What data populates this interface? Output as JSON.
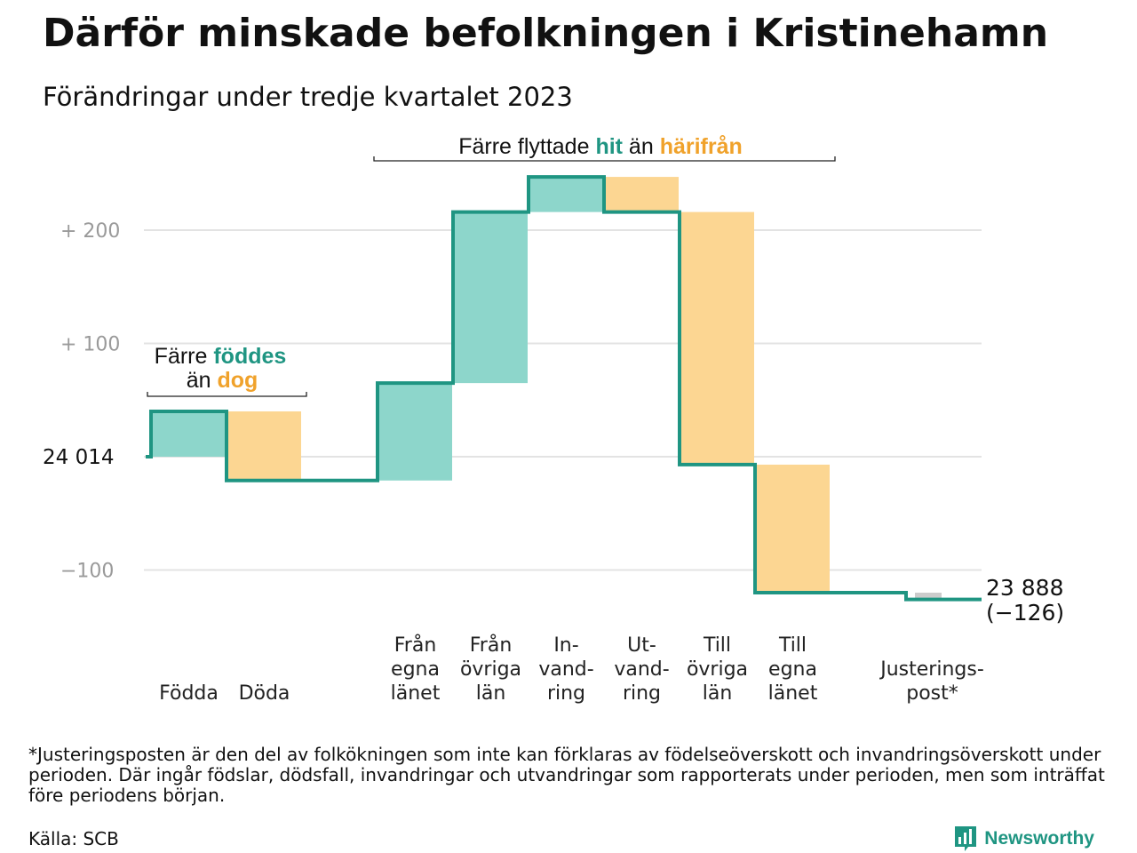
{
  "title": "Därför minskade befolkningen i Kristinehamn",
  "subtitle": "Förändringar under tredje kvartalet 2023",
  "chart_data": {
    "type": "bar",
    "subtype": "waterfall",
    "start_value": 24014,
    "start_label": "24  014",
    "end_value": 23888,
    "end_label": "23 888",
    "end_change_label": "(−126)",
    "y_ticks": [
      {
        "value": 200,
        "label": "+  200"
      },
      {
        "value": 100,
        "label": "+  100"
      },
      {
        "value": -100,
        "label": "−100"
      }
    ],
    "ylim": [
      -135,
      250
    ],
    "grid": true,
    "steps": [
      {
        "category": [
          "Födda"
        ],
        "value": 40
      },
      {
        "category": [
          "Döda"
        ],
        "value": -61
      },
      {
        "category": [],
        "value": 0
      },
      {
        "category": [
          "Från",
          "egna",
          "länet"
        ],
        "value": 86
      },
      {
        "category": [
          "Från",
          "övriga",
          "län"
        ],
        "value": 151
      },
      {
        "category": [
          "In-",
          "vand-",
          "ring"
        ],
        "value": 31
      },
      {
        "category": [
          "Ut-",
          "vand-",
          "ring"
        ],
        "value": -31
      },
      {
        "category": [
          "Till",
          "övriga",
          "län"
        ],
        "value": -223
      },
      {
        "category": [
          "Till",
          "egna",
          "länet"
        ],
        "value": -113
      },
      {
        "category": [],
        "value": 0
      },
      {
        "category": [
          "Justerings-",
          "post*"
        ],
        "value": -6
      }
    ],
    "annotations": {
      "births": {
        "line1_pre": "Färre ",
        "line1_hl": "föddes",
        "line2_pre": "än ",
        "line2_hl": "dog"
      },
      "moves": {
        "pre": "Färre flyttade ",
        "hl1": "hit",
        "mid": " än ",
        "hl2": "härifrån"
      }
    },
    "colors": {
      "increase": "#8dd6cb",
      "decrease": "#fcd692",
      "adjustment": "#cccccc",
      "line": "#1f9582",
      "grid": "#e3e3e3",
      "highlight_green": "#1f9582",
      "highlight_orange": "#f0a22b"
    }
  },
  "footnote": "*Justeringsposten är den del av folkökningen som inte kan förklaras av födelseöverskott och invandringsöverskott under perioden. Där ingår födslar, dödsfall, invandringar och utvandringar som rapporterats under perioden, men som inträffat före periodens början.",
  "source": "Källa: SCB",
  "brand": {
    "name": "Newsworthy",
    "icon": "bar-chart-speech-bubble-icon"
  }
}
